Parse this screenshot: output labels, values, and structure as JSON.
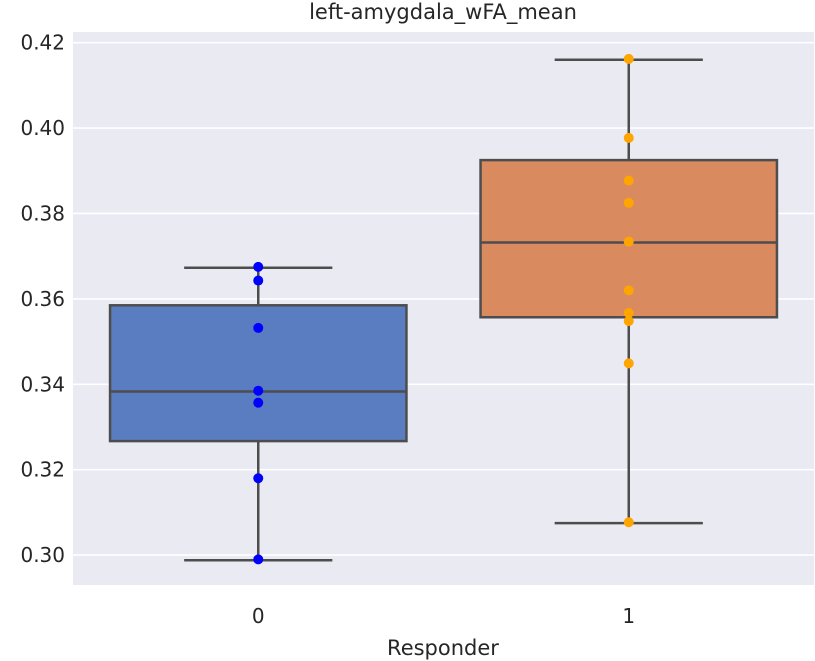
{
  "chart_data": {
    "type": "box",
    "title": "left-amygdala_wFA_mean",
    "xlabel": "Responder",
    "ylabel": "",
    "categories": [
      "0",
      "1"
    ],
    "ylim": [
      0.293,
      0.4225
    ],
    "yticks": [
      "0.30",
      "0.32",
      "0.34",
      "0.36",
      "0.38",
      "0.40",
      "0.42"
    ],
    "yticks_values": [
      0.3,
      0.32,
      0.34,
      0.36,
      0.38,
      0.4,
      0.42
    ],
    "grid": true,
    "series": [
      {
        "category": "0",
        "box_color": "#5a7dc1",
        "point_color": "#0000ff",
        "whisker_low": 0.2988,
        "q1": 0.3267,
        "median": 0.3383,
        "q3": 0.3585,
        "whisker_high": 0.3673,
        "points": [
          0.3675,
          0.3643,
          0.3532,
          0.3385,
          0.3357,
          0.318,
          0.299
        ]
      },
      {
        "category": "1",
        "box_color": "#d98b5f",
        "point_color": "#ffa500",
        "whisker_low": 0.3075,
        "q1": 0.3557,
        "median": 0.3732,
        "q3": 0.3925,
        "whisker_high": 0.416,
        "points": [
          0.4162,
          0.3977,
          0.3877,
          0.3825,
          0.3734,
          0.362,
          0.3567,
          0.3548,
          0.3449,
          0.3077
        ]
      }
    ]
  }
}
